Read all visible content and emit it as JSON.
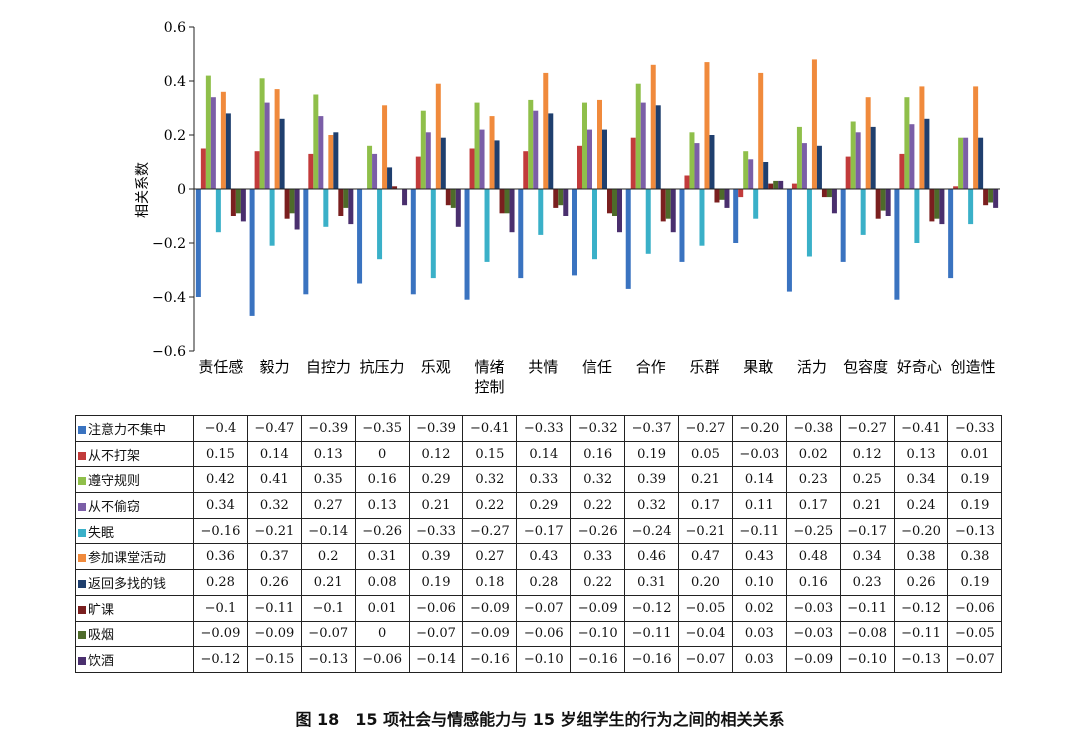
{
  "caption": "图 18　15 项社会与情感能力与 15 岁组学生的行为之间的相关关系",
  "chart_data": {
    "type": "bar",
    "ylabel": "相关系数",
    "ylim": [
      -0.6,
      0.6
    ],
    "yticks": [
      -0.6,
      -0.4,
      -0.2,
      0,
      0.2,
      0.4,
      0.6
    ],
    "ytick_labels": [
      "−0.6",
      "−0.4",
      "−0.2",
      "0",
      "0.2",
      "0.4",
      "0.6"
    ],
    "categories": [
      "责任感",
      "毅力",
      "自控力",
      "抗压力",
      "乐观",
      "情绪控制",
      "共情",
      "信任",
      "合作",
      "乐群",
      "果敢",
      "活力",
      "包容度",
      "好奇心",
      "创造性"
    ],
    "category_display": [
      [
        "责任感"
      ],
      [
        "毅力"
      ],
      [
        "自控力"
      ],
      [
        "抗压力"
      ],
      [
        "乐观"
      ],
      [
        "情绪",
        "控制"
      ],
      [
        "共情"
      ],
      [
        "信任"
      ],
      [
        "合作"
      ],
      [
        "乐群"
      ],
      [
        "果敢"
      ],
      [
        "活力"
      ],
      [
        "包容度"
      ],
      [
        "好奇心"
      ],
      [
        "创造性"
      ]
    ],
    "series": [
      {
        "name": "注意力不集中",
        "color": "#3a73c0",
        "values": [
          -0.4,
          -0.47,
          -0.39,
          -0.35,
          -0.39,
          -0.41,
          -0.33,
          -0.32,
          -0.37,
          -0.27,
          -0.2,
          -0.38,
          -0.27,
          -0.41,
          -0.33
        ],
        "labels": [
          "−0.4",
          "−0.47",
          "−0.39",
          "−0.35",
          "−0.39",
          "−0.41",
          "−0.33",
          "−0.32",
          "−0.37",
          "−0.27",
          "−0.20",
          "−0.38",
          "−0.27",
          "−0.41",
          "−0.33"
        ]
      },
      {
        "name": "从不打架",
        "color": "#c23b3b",
        "values": [
          0.15,
          0.14,
          0.13,
          0,
          0.12,
          0.15,
          0.14,
          0.16,
          0.19,
          0.05,
          -0.03,
          0.02,
          0.12,
          0.13,
          0.01
        ],
        "labels": [
          "0.15",
          "0.14",
          "0.13",
          "0",
          "0.12",
          "0.15",
          "0.14",
          "0.16",
          "0.19",
          "0.05",
          "−0.03",
          "0.02",
          "0.12",
          "0.13",
          "0.01"
        ]
      },
      {
        "name": "遵守规则",
        "color": "#8fbf4a",
        "values": [
          0.42,
          0.41,
          0.35,
          0.16,
          0.29,
          0.32,
          0.33,
          0.32,
          0.39,
          0.21,
          0.14,
          0.23,
          0.25,
          0.34,
          0.19
        ],
        "labels": [
          "0.42",
          "0.41",
          "0.35",
          "0.16",
          "0.29",
          "0.32",
          "0.33",
          "0.32",
          "0.39",
          "0.21",
          "0.14",
          "0.23",
          "0.25",
          "0.34",
          "0.19"
        ]
      },
      {
        "name": "从不偷窃",
        "color": "#7b5ea7",
        "values": [
          0.34,
          0.32,
          0.27,
          0.13,
          0.21,
          0.22,
          0.29,
          0.22,
          0.32,
          0.17,
          0.11,
          0.17,
          0.21,
          0.24,
          0.19
        ],
        "labels": [
          "0.34",
          "0.32",
          "0.27",
          "0.13",
          "0.21",
          "0.22",
          "0.29",
          "0.22",
          "0.32",
          "0.17",
          "0.11",
          "0.17",
          "0.21",
          "0.24",
          "0.19"
        ]
      },
      {
        "name": "失眠",
        "color": "#3ab0c8",
        "values": [
          -0.16,
          -0.21,
          -0.14,
          -0.26,
          -0.33,
          -0.27,
          -0.17,
          -0.26,
          -0.24,
          -0.21,
          -0.11,
          -0.25,
          -0.17,
          -0.2,
          -0.13
        ],
        "labels": [
          "−0.16",
          "−0.21",
          "−0.14",
          "−0.26",
          "−0.33",
          "−0.27",
          "−0.17",
          "−0.26",
          "−0.24",
          "−0.21",
          "−0.11",
          "−0.25",
          "−0.17",
          "−0.20",
          "−0.13"
        ]
      },
      {
        "name": "参加课堂活动",
        "color": "#f08a3c",
        "values": [
          0.36,
          0.37,
          0.2,
          0.31,
          0.39,
          0.27,
          0.43,
          0.33,
          0.46,
          0.47,
          0.43,
          0.48,
          0.34,
          0.38,
          0.38
        ],
        "labels": [
          "0.36",
          "0.37",
          "0.2",
          "0.31",
          "0.39",
          "0.27",
          "0.43",
          "0.33",
          "0.46",
          "0.47",
          "0.43",
          "0.48",
          "0.34",
          "0.38",
          "0.38"
        ]
      },
      {
        "name": "返回多找的钱",
        "color": "#1f3f6e",
        "values": [
          0.28,
          0.26,
          0.21,
          0.08,
          0.19,
          0.18,
          0.28,
          0.22,
          0.31,
          0.2,
          0.1,
          0.16,
          0.23,
          0.26,
          0.19
        ],
        "labels": [
          "0.28",
          "0.26",
          "0.21",
          "0.08",
          "0.19",
          "0.18",
          "0.28",
          "0.22",
          "0.31",
          "0.20",
          "0.10",
          "0.16",
          "0.23",
          "0.26",
          "0.19"
        ]
      },
      {
        "name": "旷课",
        "color": "#7a1f1f",
        "values": [
          -0.1,
          -0.11,
          -0.1,
          0.01,
          -0.06,
          -0.09,
          -0.07,
          -0.09,
          -0.12,
          -0.05,
          0.02,
          -0.03,
          -0.11,
          -0.12,
          -0.06
        ],
        "labels": [
          "−0.1",
          "−0.11",
          "−0.1",
          "0.01",
          "−0.06",
          "−0.09",
          "−0.07",
          "−0.09",
          "−0.12",
          "−0.05",
          "0.02",
          "−0.03",
          "−0.11",
          "−0.12",
          "−0.06"
        ]
      },
      {
        "name": "吸烟",
        "color": "#4e6b2a",
        "values": [
          -0.09,
          -0.09,
          -0.07,
          0,
          -0.07,
          -0.09,
          -0.06,
          -0.1,
          -0.11,
          -0.04,
          0.03,
          -0.03,
          -0.08,
          -0.11,
          -0.05
        ],
        "labels": [
          "−0.09",
          "−0.09",
          "−0.07",
          "0",
          "−0.07",
          "−0.09",
          "−0.06",
          "−0.10",
          "−0.11",
          "−0.04",
          "0.03",
          "−0.03",
          "−0.08",
          "−0.11",
          "−0.05"
        ]
      },
      {
        "name": "饮酒",
        "color": "#4a2f6e",
        "values": [
          -0.12,
          -0.15,
          -0.13,
          -0.06,
          -0.14,
          -0.16,
          -0.1,
          -0.16,
          -0.16,
          -0.07,
          0.03,
          -0.09,
          -0.1,
          -0.13,
          -0.07
        ],
        "labels": [
          "−0.12",
          "−0.15",
          "−0.13",
          "−0.06",
          "−0.14",
          "−0.16",
          "−0.10",
          "−0.16",
          "−0.16",
          "−0.07",
          "0.03",
          "−0.09",
          "−0.10",
          "−0.13",
          "−0.07"
        ]
      }
    ]
  }
}
